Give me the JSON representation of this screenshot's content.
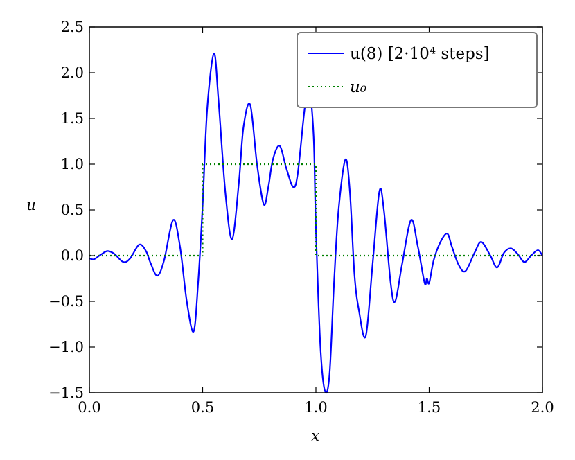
{
  "chart_data": {
    "type": "line",
    "title": "",
    "xlabel": "x",
    "ylabel": "u",
    "xlim": [
      0.0,
      2.0
    ],
    "ylim": [
      -1.5,
      2.5
    ],
    "xticks": [
      "0.0",
      "0.5",
      "1.0",
      "1.5",
      "2.0"
    ],
    "yticks": [
      "−1.5",
      "−1.0",
      "−0.5",
      "0.0",
      "0.5",
      "1.0",
      "1.5",
      "2.0",
      "2.5"
    ],
    "grid": false,
    "legend_position": "top-right",
    "series": [
      {
        "name": "u(8) [2·10⁴ steps]",
        "color": "#0000ff",
        "style": "solid",
        "x": [
          0.0,
          0.02,
          0.05,
          0.08,
          0.11,
          0.15,
          0.18,
          0.22,
          0.25,
          0.27,
          0.3,
          0.33,
          0.37,
          0.4,
          0.43,
          0.46,
          0.48,
          0.5,
          0.52,
          0.55,
          0.57,
          0.6,
          0.63,
          0.66,
          0.68,
          0.71,
          0.74,
          0.77,
          0.79,
          0.81,
          0.84,
          0.87,
          0.9,
          0.92,
          0.95,
          0.97,
          0.99,
          1.0,
          1.02,
          1.04,
          1.06,
          1.08,
          1.1,
          1.13,
          1.15,
          1.17,
          1.19,
          1.22,
          1.25,
          1.28,
          1.3,
          1.33,
          1.35,
          1.38,
          1.42,
          1.45,
          1.48,
          1.49,
          1.5,
          1.52,
          1.55,
          1.58,
          1.6,
          1.63,
          1.66,
          1.7,
          1.73,
          1.77,
          1.8,
          1.83,
          1.86,
          1.89,
          1.92,
          1.95,
          1.98,
          2.0
        ],
        "y": [
          -0.03,
          -0.04,
          0.01,
          0.05,
          0.02,
          -0.07,
          -0.03,
          0.12,
          0.05,
          -0.08,
          -0.22,
          -0.05,
          0.39,
          0.1,
          -0.5,
          -0.83,
          -0.3,
          0.55,
          1.6,
          2.21,
          1.7,
          0.7,
          0.18,
          0.8,
          1.4,
          1.65,
          1.0,
          0.56,
          0.75,
          1.05,
          1.2,
          0.95,
          0.75,
          0.9,
          1.6,
          1.84,
          1.3,
          0.3,
          -1.0,
          -1.48,
          -1.3,
          -0.3,
          0.5,
          1.05,
          0.7,
          -0.2,
          -0.6,
          -0.88,
          -0.1,
          0.7,
          0.5,
          -0.3,
          -0.5,
          -0.1,
          0.39,
          0.1,
          -0.3,
          -0.25,
          -0.3,
          -0.05,
          0.15,
          0.24,
          0.1,
          -0.1,
          -0.17,
          0.03,
          0.15,
          0.0,
          -0.13,
          0.03,
          0.08,
          0.02,
          -0.07,
          0.0,
          0.06,
          0.0
        ]
      },
      {
        "name": "u₀",
        "color": "#008000",
        "style": "dotted",
        "x": [
          0.0,
          0.5,
          0.5,
          1.0,
          1.0,
          2.0
        ],
        "y": [
          0.0,
          0.0,
          1.0,
          1.0,
          0.0,
          0.0
        ]
      }
    ]
  }
}
